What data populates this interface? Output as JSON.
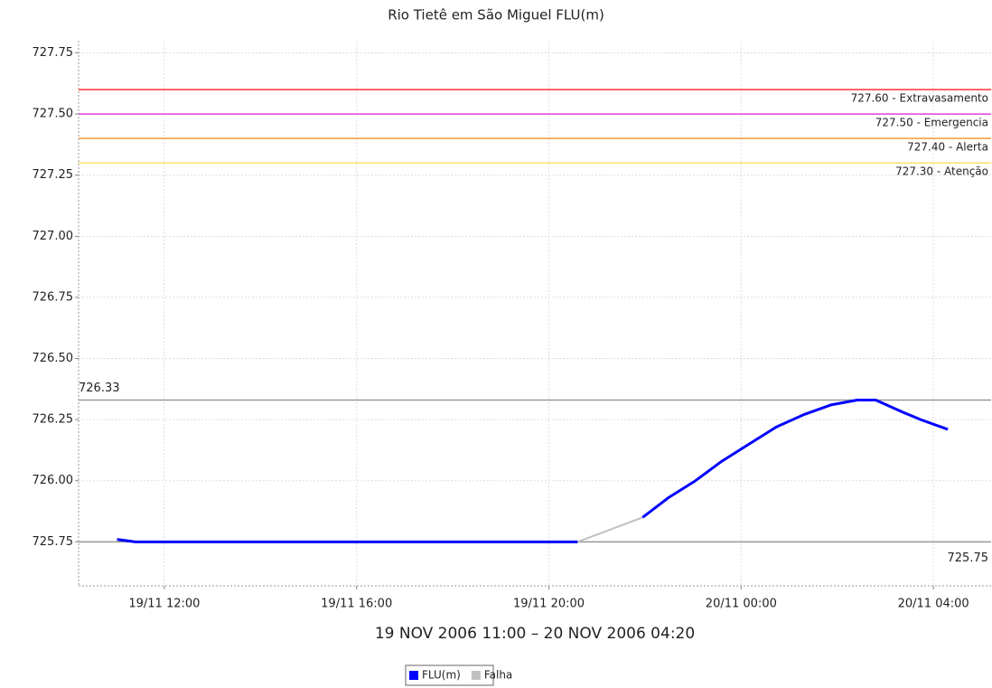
{
  "chart_data": {
    "type": "line",
    "title": "Rio Tietê em São Miguel FLU(m)",
    "x_label": "19 NOV 2006 11:00 – 20 NOV 2006 04:20",
    "xlim": [
      "19/11 10:13",
      "20/11 05:12"
    ],
    "xticks": [
      "19/11 12:00",
      "19/11 16:00",
      "19/11 20:00",
      "20/11 00:00",
      "20/11 04:00"
    ],
    "ylim": [
      725.57,
      727.8
    ],
    "yticks": [
      725.75,
      {
        "value": 726,
        "label": "726.00"
      },
      726.25,
      {
        "value": 726.5,
        "label": "726.50"
      },
      726.75,
      {
        "value": 727,
        "label": "727.00"
      },
      727.25,
      {
        "value": 727.5,
        "label": "727.50"
      },
      727.75
    ],
    "grid": true,
    "legend": "bottom",
    "series": [
      {
        "name": "FLU(m)",
        "color": "#0000ff",
        "x": [
          "19/11 11:01",
          "19/11 11:24",
          "19/11 20:36",
          "19/11 21:15",
          "19/11 21:57",
          "19/11 22:29",
          "19/11 23:03",
          "19/11 23:36",
          "20/11 00:10",
          "20/11 00:44",
          "20/11 01:18",
          "20/11 01:52",
          "20/11 02:25",
          "20/11 02:48",
          "20/11 03:22",
          "20/11 03:44",
          "20/11 04:18"
        ],
        "values": [
          725.76,
          725.75,
          725.75,
          null,
          725.85,
          725.93,
          726.0,
          726.08,
          726.15,
          726.22,
          726.27,
          726.31,
          726.33,
          726.33,
          726.28,
          726.25,
          726.21
        ]
      },
      {
        "name": "Falha",
        "color": "#c0c0c0",
        "x": [
          "19/11 20:36",
          "19/11 21:57"
        ],
        "values": [
          725.75,
          725.85
        ]
      }
    ],
    "reference_lines": [
      {
        "value": 727.6,
        "label": "727.60 - Extravasamento",
        "color": "#ff3333"
      },
      {
        "value": 727.5,
        "label": "727.50 - Emergencia",
        "color": "#e040e0"
      },
      {
        "value": 727.4,
        "label": "727.40 - Alerta",
        "color": "#ff9933"
      },
      {
        "value": 727.3,
        "label": "727.30 - Atenção",
        "color": "#ffe066"
      }
    ],
    "max_line": {
      "value": 726.33,
      "label": "726.33",
      "color": "#999999"
    },
    "min_line": {
      "value": 725.75,
      "label": "725.75",
      "color": "#999999"
    }
  }
}
